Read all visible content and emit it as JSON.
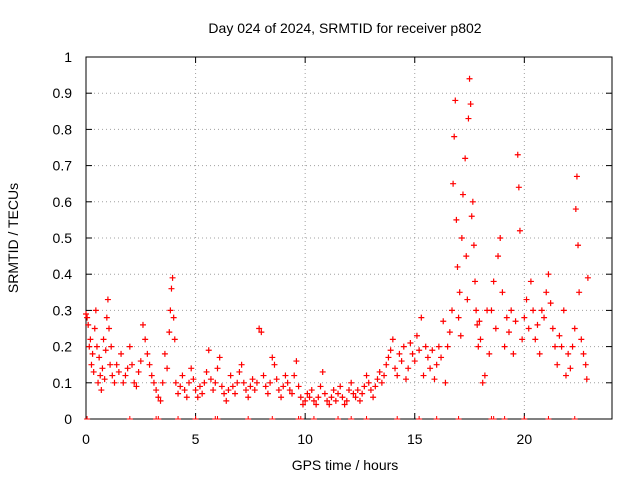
{
  "chart_data": {
    "type": "scatter",
    "title": "Day 024 of 2024, SRMTID for receiver p802",
    "xlabel": "GPS time / hours",
    "ylabel": "SRMTID / TECUs",
    "xlim": [
      0,
      24
    ],
    "ylim": [
      0,
      1
    ],
    "x_ticks": [
      "0",
      "5",
      "10",
      "15",
      "20"
    ],
    "x_tick_values": [
      0,
      5,
      10,
      15,
      20
    ],
    "y_ticks": [
      "0",
      "0.1",
      "0.2",
      "0.3",
      "0.4",
      "0.5",
      "0.6",
      "0.7",
      "0.8",
      "0.9",
      "1"
    ],
    "y_tick_values": [
      0,
      0.1,
      0.2,
      0.3,
      0.4,
      0.5,
      0.6,
      0.7,
      0.8,
      0.9,
      1
    ],
    "grid": true,
    "marker": "+",
    "series_color": "#ff0000",
    "zero_markers_x": [
      0.05,
      2.0,
      3.2,
      3.3,
      4.2,
      5.0,
      5.9,
      6.0,
      7.4,
      8.5,
      9.7,
      9.8,
      10.4,
      11.5,
      12.1,
      12.8,
      14.2,
      15.2,
      16.0,
      17.0,
      18.5,
      18.6,
      19.1,
      20.0,
      21.1,
      22.3
    ],
    "series": [
      {
        "name": "SRMTID",
        "points": [
          [
            0.0,
            0.29
          ],
          [
            0.05,
            0.28
          ],
          [
            0.1,
            0.26
          ],
          [
            0.15,
            0.2
          ],
          [
            0.2,
            0.22
          ],
          [
            0.25,
            0.15
          ],
          [
            0.3,
            0.18
          ],
          [
            0.35,
            0.13
          ],
          [
            0.4,
            0.25
          ],
          [
            0.45,
            0.3
          ],
          [
            0.5,
            0.2
          ],
          [
            0.55,
            0.1
          ],
          [
            0.6,
            0.17
          ],
          [
            0.65,
            0.12
          ],
          [
            0.7,
            0.08
          ],
          [
            0.75,
            0.14
          ],
          [
            0.8,
            0.22
          ],
          [
            0.85,
            0.11
          ],
          [
            0.9,
            0.19
          ],
          [
            0.95,
            0.28
          ],
          [
            1.0,
            0.33
          ],
          [
            1.05,
            0.25
          ],
          [
            1.1,
            0.15
          ],
          [
            1.15,
            0.2
          ],
          [
            1.2,
            0.12
          ],
          [
            1.3,
            0.1
          ],
          [
            1.4,
            0.15
          ],
          [
            1.5,
            0.13
          ],
          [
            1.6,
            0.18
          ],
          [
            1.7,
            0.1
          ],
          [
            1.8,
            0.12
          ],
          [
            1.9,
            0.14
          ],
          [
            2.0,
            0.2
          ],
          [
            2.1,
            0.15
          ],
          [
            2.2,
            0.1
          ],
          [
            2.3,
            0.09
          ],
          [
            2.4,
            0.13
          ],
          [
            2.5,
            0.16
          ],
          [
            2.6,
            0.26
          ],
          [
            2.7,
            0.22
          ],
          [
            2.8,
            0.18
          ],
          [
            2.9,
            0.15
          ],
          [
            3.0,
            0.12
          ],
          [
            3.1,
            0.1
          ],
          [
            3.2,
            0.08
          ],
          [
            3.3,
            0.06
          ],
          [
            3.4,
            0.05
          ],
          [
            3.5,
            0.1
          ],
          [
            3.6,
            0.18
          ],
          [
            3.7,
            0.14
          ],
          [
            3.8,
            0.24
          ],
          [
            3.85,
            0.3
          ],
          [
            3.9,
            0.36
          ],
          [
            3.95,
            0.39
          ],
          [
            4.0,
            0.28
          ],
          [
            4.05,
            0.22
          ],
          [
            4.1,
            0.1
          ],
          [
            4.2,
            0.07
          ],
          [
            4.3,
            0.09
          ],
          [
            4.4,
            0.12
          ],
          [
            4.5,
            0.08
          ],
          [
            4.6,
            0.06
          ],
          [
            4.7,
            0.1
          ],
          [
            4.8,
            0.14
          ],
          [
            4.9,
            0.11
          ],
          [
            5.0,
            0.08
          ],
          [
            5.1,
            0.06
          ],
          [
            5.2,
            0.09
          ],
          [
            5.3,
            0.07
          ],
          [
            5.4,
            0.1
          ],
          [
            5.5,
            0.13
          ],
          [
            5.6,
            0.19
          ],
          [
            5.7,
            0.11
          ],
          [
            5.8,
            0.08
          ],
          [
            5.9,
            0.1
          ],
          [
            6.0,
            0.14
          ],
          [
            6.1,
            0.17
          ],
          [
            6.2,
            0.09
          ],
          [
            6.3,
            0.07
          ],
          [
            6.4,
            0.05
          ],
          [
            6.5,
            0.08
          ],
          [
            6.6,
            0.12
          ],
          [
            6.7,
            0.09
          ],
          [
            6.8,
            0.07
          ],
          [
            6.9,
            0.1
          ],
          [
            7.0,
            0.13
          ],
          [
            7.1,
            0.15
          ],
          [
            7.2,
            0.1
          ],
          [
            7.3,
            0.08
          ],
          [
            7.4,
            0.06
          ],
          [
            7.5,
            0.09
          ],
          [
            7.6,
            0.11
          ],
          [
            7.7,
            0.08
          ],
          [
            7.8,
            0.1
          ],
          [
            7.9,
            0.25
          ],
          [
            8.0,
            0.24
          ],
          [
            8.1,
            0.12
          ],
          [
            8.2,
            0.09
          ],
          [
            8.3,
            0.07
          ],
          [
            8.4,
            0.1
          ],
          [
            8.5,
            0.17
          ],
          [
            8.6,
            0.15
          ],
          [
            8.7,
            0.11
          ],
          [
            8.8,
            0.08
          ],
          [
            8.9,
            0.06
          ],
          [
            9.0,
            0.09
          ],
          [
            9.1,
            0.12
          ],
          [
            9.2,
            0.1
          ],
          [
            9.3,
            0.08
          ],
          [
            9.4,
            0.07
          ],
          [
            9.5,
            0.12
          ],
          [
            9.6,
            0.16
          ],
          [
            9.7,
            0.09
          ],
          [
            9.8,
            0.06
          ],
          [
            9.9,
            0.04
          ],
          [
            10.0,
            0.05
          ],
          [
            10.1,
            0.07
          ],
          [
            10.2,
            0.06
          ],
          [
            10.3,
            0.08
          ],
          [
            10.4,
            0.05
          ],
          [
            10.5,
            0.04
          ],
          [
            10.6,
            0.06
          ],
          [
            10.7,
            0.09
          ],
          [
            10.8,
            0.13
          ],
          [
            10.9,
            0.07
          ],
          [
            11.0,
            0.05
          ],
          [
            11.1,
            0.04
          ],
          [
            11.2,
            0.06
          ],
          [
            11.3,
            0.08
          ],
          [
            11.4,
            0.05
          ],
          [
            11.5,
            0.07
          ],
          [
            11.6,
            0.09
          ],
          [
            11.7,
            0.06
          ],
          [
            11.8,
            0.04
          ],
          [
            11.9,
            0.05
          ],
          [
            12.0,
            0.08
          ],
          [
            12.1,
            0.1
          ],
          [
            12.2,
            0.07
          ],
          [
            12.3,
            0.06
          ],
          [
            12.4,
            0.08
          ],
          [
            12.5,
            0.05
          ],
          [
            12.6,
            0.07
          ],
          [
            12.7,
            0.09
          ],
          [
            12.8,
            0.12
          ],
          [
            12.9,
            0.1
          ],
          [
            13.0,
            0.08
          ],
          [
            13.1,
            0.06
          ],
          [
            13.2,
            0.09
          ],
          [
            13.3,
            0.11
          ],
          [
            13.4,
            0.13
          ],
          [
            13.5,
            0.1
          ],
          [
            13.6,
            0.12
          ],
          [
            13.7,
            0.15
          ],
          [
            13.8,
            0.17
          ],
          [
            13.9,
            0.19
          ],
          [
            14.0,
            0.22
          ],
          [
            14.1,
            0.14
          ],
          [
            14.2,
            0.12
          ],
          [
            14.3,
            0.18
          ],
          [
            14.4,
            0.16
          ],
          [
            14.5,
            0.2
          ],
          [
            14.6,
            0.11
          ],
          [
            14.7,
            0.14
          ],
          [
            14.8,
            0.21
          ],
          [
            14.9,
            0.18
          ],
          [
            15.0,
            0.16
          ],
          [
            15.1,
            0.23
          ],
          [
            15.2,
            0.19
          ],
          [
            15.3,
            0.28
          ],
          [
            15.4,
            0.12
          ],
          [
            15.5,
            0.2
          ],
          [
            15.6,
            0.17
          ],
          [
            15.7,
            0.14
          ],
          [
            15.8,
            0.19
          ],
          [
            15.9,
            0.11
          ],
          [
            16.0,
            0.15
          ],
          [
            16.1,
            0.2
          ],
          [
            16.2,
            0.17
          ],
          [
            16.3,
            0.27
          ],
          [
            16.4,
            0.1
          ],
          [
            16.5,
            0.2
          ],
          [
            16.6,
            0.24
          ],
          [
            16.7,
            0.3
          ],
          [
            16.75,
            0.65
          ],
          [
            16.8,
            0.78
          ],
          [
            16.85,
            0.88
          ],
          [
            16.9,
            0.55
          ],
          [
            16.95,
            0.42
          ],
          [
            17.0,
            0.28
          ],
          [
            17.05,
            0.35
          ],
          [
            17.1,
            0.23
          ],
          [
            17.15,
            0.5
          ],
          [
            17.2,
            0.62
          ],
          [
            17.3,
            0.72
          ],
          [
            17.35,
            0.45
          ],
          [
            17.4,
            0.33
          ],
          [
            17.45,
            0.83
          ],
          [
            17.5,
            0.94
          ],
          [
            17.55,
            0.87
          ],
          [
            17.6,
            0.56
          ],
          [
            17.65,
            0.6
          ],
          [
            17.7,
            0.48
          ],
          [
            17.75,
            0.38
          ],
          [
            17.8,
            0.3
          ],
          [
            17.85,
            0.26
          ],
          [
            17.9,
            0.2
          ],
          [
            17.95,
            0.27
          ],
          [
            18.0,
            0.22
          ],
          [
            18.1,
            0.1
          ],
          [
            18.2,
            0.12
          ],
          [
            18.3,
            0.3
          ],
          [
            18.4,
            0.18
          ],
          [
            18.5,
            0.3
          ],
          [
            18.6,
            0.38
          ],
          [
            18.7,
            0.25
          ],
          [
            18.8,
            0.45
          ],
          [
            18.9,
            0.5
          ],
          [
            19.0,
            0.35
          ],
          [
            19.1,
            0.2
          ],
          [
            19.2,
            0.28
          ],
          [
            19.3,
            0.24
          ],
          [
            19.4,
            0.3
          ],
          [
            19.5,
            0.18
          ],
          [
            19.6,
            0.27
          ],
          [
            19.7,
            0.73
          ],
          [
            19.75,
            0.64
          ],
          [
            19.8,
            0.52
          ],
          [
            19.9,
            0.22
          ],
          [
            20.0,
            0.28
          ],
          [
            20.1,
            0.33
          ],
          [
            20.2,
            0.25
          ],
          [
            20.3,
            0.38
          ],
          [
            20.4,
            0.3
          ],
          [
            20.5,
            0.22
          ],
          [
            20.6,
            0.26
          ],
          [
            20.7,
            0.18
          ],
          [
            20.8,
            0.3
          ],
          [
            20.9,
            0.28
          ],
          [
            21.0,
            0.35
          ],
          [
            21.1,
            0.4
          ],
          [
            21.2,
            0.32
          ],
          [
            21.3,
            0.25
          ],
          [
            21.4,
            0.2
          ],
          [
            21.5,
            0.15
          ],
          [
            21.6,
            0.23
          ],
          [
            21.7,
            0.2
          ],
          [
            21.8,
            0.3
          ],
          [
            21.9,
            0.12
          ],
          [
            22.0,
            0.18
          ],
          [
            22.1,
            0.14
          ],
          [
            22.2,
            0.2
          ],
          [
            22.3,
            0.25
          ],
          [
            22.35,
            0.58
          ],
          [
            22.4,
            0.67
          ],
          [
            22.45,
            0.48
          ],
          [
            22.5,
            0.35
          ],
          [
            22.6,
            0.22
          ],
          [
            22.7,
            0.18
          ],
          [
            22.8,
            0.15
          ],
          [
            22.85,
            0.11
          ],
          [
            22.9,
            0.39
          ]
        ]
      }
    ]
  }
}
